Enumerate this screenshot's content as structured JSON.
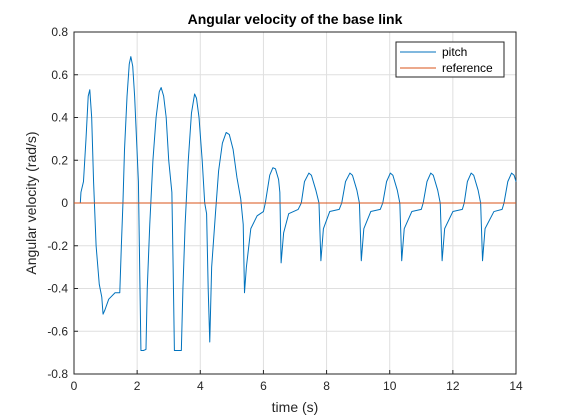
{
  "chart_data": {
    "type": "line",
    "title": "Angular velocity of the base link",
    "xlabel": "time (s)",
    "ylabel": "Angular velocity (rad/s)",
    "xlim": [
      0,
      14
    ],
    "ylim": [
      -0.8,
      0.8
    ],
    "xticks": [
      0,
      2,
      4,
      6,
      8,
      10,
      12,
      14
    ],
    "yticks": [
      -0.8,
      -0.6,
      -0.4,
      -0.2,
      0,
      0.2,
      0.4,
      0.6,
      0.8
    ],
    "xtick_labels": [
      "0",
      "2",
      "4",
      "6",
      "8",
      "10",
      "12",
      "14"
    ],
    "ytick_labels": [
      "-0.8",
      "-0.6",
      "-0.4",
      "-0.2",
      "0",
      "0.2",
      "0.4",
      "0.6",
      "0.8"
    ],
    "grid": true,
    "legend_position": "top-right",
    "series": [
      {
        "name": "pitch",
        "color": "#0072BD",
        "points": [
          [
            0,
            0
          ],
          [
            0.2,
            0
          ],
          [
            0.22,
            0.05
          ],
          [
            0.3,
            0.1
          ],
          [
            0.38,
            0.3
          ],
          [
            0.45,
            0.5
          ],
          [
            0.5,
            0.53
          ],
          [
            0.56,
            0.4
          ],
          [
            0.62,
            0.1
          ],
          [
            0.7,
            -0.2
          ],
          [
            0.8,
            -0.38
          ],
          [
            0.88,
            -0.44
          ],
          [
            0.92,
            -0.52
          ],
          [
            0.98,
            -0.5
          ],
          [
            1.1,
            -0.45
          ],
          [
            1.3,
            -0.42
          ],
          [
            1.45,
            -0.42
          ],
          [
            1.5,
            -0.2
          ],
          [
            1.55,
            0.0
          ],
          [
            1.6,
            0.25
          ],
          [
            1.68,
            0.5
          ],
          [
            1.75,
            0.65
          ],
          [
            1.8,
            0.685
          ],
          [
            1.86,
            0.64
          ],
          [
            1.92,
            0.5
          ],
          [
            1.98,
            0.3
          ],
          [
            2.04,
            0.1
          ],
          [
            2.08,
            -0.3
          ],
          [
            2.12,
            -0.69
          ],
          [
            2.2,
            -0.69
          ],
          [
            2.28,
            -0.685
          ],
          [
            2.32,
            -0.4
          ],
          [
            2.4,
            -0.1
          ],
          [
            2.5,
            0.2
          ],
          [
            2.6,
            0.4
          ],
          [
            2.7,
            0.52
          ],
          [
            2.76,
            0.54
          ],
          [
            2.84,
            0.5
          ],
          [
            2.92,
            0.4
          ],
          [
            3.0,
            0.2
          ],
          [
            3.1,
            0.05
          ],
          [
            3.14,
            -0.3
          ],
          [
            3.18,
            -0.69
          ],
          [
            3.4,
            -0.69
          ],
          [
            3.45,
            -0.4
          ],
          [
            3.52,
            -0.1
          ],
          [
            3.62,
            0.2
          ],
          [
            3.72,
            0.42
          ],
          [
            3.82,
            0.51
          ],
          [
            3.88,
            0.49
          ],
          [
            3.96,
            0.4
          ],
          [
            4.06,
            0.2
          ],
          [
            4.14,
            0.0
          ],
          [
            4.2,
            -0.05
          ],
          [
            4.25,
            -0.4
          ],
          [
            4.3,
            -0.65
          ],
          [
            4.36,
            -0.3
          ],
          [
            4.48,
            -0.05
          ],
          [
            4.58,
            0.15
          ],
          [
            4.7,
            0.28
          ],
          [
            4.82,
            0.33
          ],
          [
            4.92,
            0.32
          ],
          [
            5.04,
            0.25
          ],
          [
            5.16,
            0.12
          ],
          [
            5.28,
            0.02
          ],
          [
            5.36,
            -0.1
          ],
          [
            5.4,
            -0.42
          ],
          [
            5.46,
            -0.3
          ],
          [
            5.6,
            -0.12
          ],
          [
            5.8,
            -0.06
          ],
          [
            6.0,
            -0.04
          ],
          [
            6.06,
            0.0
          ],
          [
            6.2,
            0.13
          ],
          [
            6.3,
            0.165
          ],
          [
            6.38,
            0.16
          ],
          [
            6.48,
            0.11
          ],
          [
            6.52,
            0.05
          ],
          [
            6.56,
            -0.28
          ],
          [
            6.64,
            -0.14
          ],
          [
            6.8,
            -0.05
          ],
          [
            7.1,
            -0.03
          ],
          [
            7.2,
            0.0
          ],
          [
            7.3,
            0.1
          ],
          [
            7.44,
            0.14
          ],
          [
            7.52,
            0.13
          ],
          [
            7.66,
            0.06
          ],
          [
            7.76,
            0.0
          ],
          [
            7.82,
            -0.27
          ],
          [
            7.9,
            -0.12
          ],
          [
            8.1,
            -0.04
          ],
          [
            8.4,
            -0.03
          ],
          [
            8.48,
            0.0
          ],
          [
            8.6,
            0.1
          ],
          [
            8.74,
            0.14
          ],
          [
            8.82,
            0.13
          ],
          [
            8.96,
            0.06
          ],
          [
            9.04,
            0.0
          ],
          [
            9.1,
            -0.27
          ],
          [
            9.18,
            -0.12
          ],
          [
            9.4,
            -0.04
          ],
          [
            9.7,
            -0.03
          ],
          [
            9.78,
            0.0
          ],
          [
            9.9,
            0.1
          ],
          [
            10.02,
            0.14
          ],
          [
            10.1,
            0.13
          ],
          [
            10.24,
            0.06
          ],
          [
            10.32,
            0.0
          ],
          [
            10.38,
            -0.27
          ],
          [
            10.46,
            -0.12
          ],
          [
            10.7,
            -0.04
          ],
          [
            11.0,
            -0.03
          ],
          [
            11.06,
            0.0
          ],
          [
            11.18,
            0.1
          ],
          [
            11.3,
            0.14
          ],
          [
            11.38,
            0.13
          ],
          [
            11.52,
            0.06
          ],
          [
            11.6,
            0.0
          ],
          [
            11.66,
            -0.27
          ],
          [
            11.74,
            -0.12
          ],
          [
            12.0,
            -0.04
          ],
          [
            12.3,
            -0.03
          ],
          [
            12.36,
            0.0
          ],
          [
            12.46,
            0.1
          ],
          [
            12.58,
            0.14
          ],
          [
            12.66,
            0.13
          ],
          [
            12.8,
            0.06
          ],
          [
            12.88,
            0.0
          ],
          [
            12.94,
            -0.27
          ],
          [
            13.02,
            -0.12
          ],
          [
            13.3,
            -0.04
          ],
          [
            13.56,
            -0.03
          ],
          [
            13.62,
            0.0
          ],
          [
            13.74,
            0.1
          ],
          [
            13.86,
            0.14
          ],
          [
            13.94,
            0.13
          ],
          [
            14.0,
            0.1
          ]
        ]
      },
      {
        "name": "reference",
        "color": "#D95319",
        "points": [
          [
            0,
            0
          ],
          [
            14,
            0
          ]
        ]
      }
    ]
  }
}
